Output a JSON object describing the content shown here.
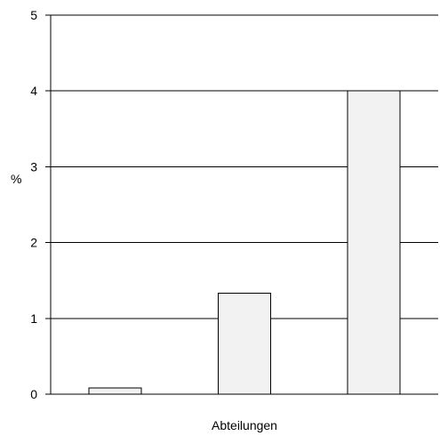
{
  "chart_data": {
    "type": "bar",
    "title": "",
    "xlabel": "Abteilungen",
    "ylabel": "%",
    "ylim": [
      0,
      5
    ],
    "yticks": [
      0,
      1,
      2,
      3,
      4,
      5
    ],
    "grid": true,
    "categories": [
      "",
      "",
      ""
    ],
    "values": [
      0.08,
      1.33,
      4.0
    ],
    "colors": {
      "bar_fill": "#f2f2f2",
      "bar_stroke": "#000000",
      "gridline": "#000000",
      "axis": "#000000"
    }
  }
}
